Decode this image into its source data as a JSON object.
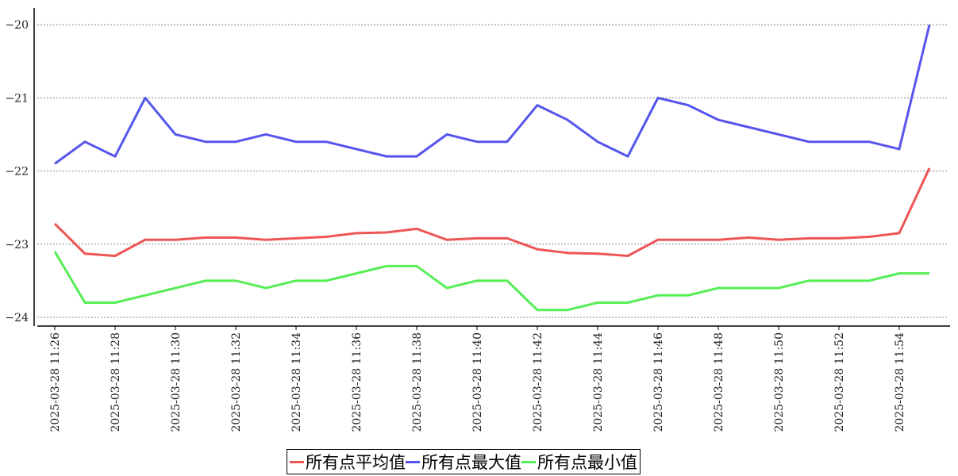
{
  "chart_data": {
    "type": "line",
    "title": "",
    "xlabel": "",
    "ylabel": "",
    "ylim": [
      -24.12,
      -19.77
    ],
    "yticks": [
      -20,
      -21,
      -22,
      -23,
      -24
    ],
    "grid": "horizontal dashed",
    "legend_position": "bottom",
    "x": [
      "11:26",
      "11:27",
      "11:28",
      "11:29",
      "11:30",
      "11:31",
      "11:32",
      "11:33",
      "11:34",
      "11:35",
      "11:36",
      "11:37",
      "11:38",
      "11:39",
      "11:40",
      "11:41",
      "11:42",
      "11:43",
      "11:44",
      "11:45",
      "11:46",
      "11:47",
      "11:48",
      "11:49",
      "11:50",
      "11:51",
      "11:52",
      "11:53",
      "11:54",
      "11:55"
    ],
    "xtick_labels": [
      "2025-03-28 11:26",
      "2025-03-28 11:28",
      "2025-03-28 11:30",
      "2025-03-28 11:32",
      "2025-03-28 11:34",
      "2025-03-28 11:36",
      "2025-03-28 11:38",
      "2025-03-28 11:40",
      "2025-03-28 11:42",
      "2025-03-28 11:44",
      "2025-03-28 11:46",
      "2025-03-28 11:48",
      "2025-03-28 11:50",
      "2025-03-28 11:52",
      "2025-03-28 11:54"
    ],
    "series": [
      {
        "name": "所有点平均值",
        "color": "#ee5555",
        "values": [
          -22.72,
          -23.13,
          -23.16,
          -22.94,
          -22.94,
          -22.91,
          -22.91,
          -22.94,
          -22.92,
          -22.9,
          -22.85,
          -22.84,
          -22.79,
          -22.94,
          -22.92,
          -22.92,
          -23.07,
          -23.12,
          -23.13,
          -23.16,
          -22.94,
          -22.94,
          -22.94,
          -22.91,
          -22.94,
          -22.92,
          -22.92,
          -22.9,
          -22.85,
          -21.96
        ]
      },
      {
        "name": "所有点最大值",
        "color": "#5555ee",
        "values": [
          -21.9,
          -21.6,
          -21.8,
          -21.0,
          -21.5,
          -21.6,
          -21.6,
          -21.5,
          -21.6,
          -21.6,
          -21.7,
          -21.8,
          -21.8,
          -21.5,
          -21.6,
          -21.6,
          -21.1,
          -21.3,
          -21.6,
          -21.8,
          -21.0,
          -21.1,
          -21.3,
          -21.4,
          -21.5,
          -21.6,
          -21.6,
          -21.6,
          -21.7,
          -20.0
        ]
      },
      {
        "name": "所有点最小值",
        "color": "#55ee55",
        "values": [
          -23.1,
          -23.8,
          -23.8,
          -23.7,
          -23.6,
          -23.5,
          -23.5,
          -23.6,
          -23.5,
          -23.5,
          -23.4,
          -23.3,
          -23.3,
          -23.6,
          -23.5,
          -23.5,
          -23.9,
          -23.9,
          -23.8,
          -23.8,
          -23.7,
          -23.7,
          -23.6,
          -23.6,
          -23.6,
          -23.5,
          -23.5,
          -23.5,
          -23.4,
          -23.4
        ]
      }
    ]
  }
}
